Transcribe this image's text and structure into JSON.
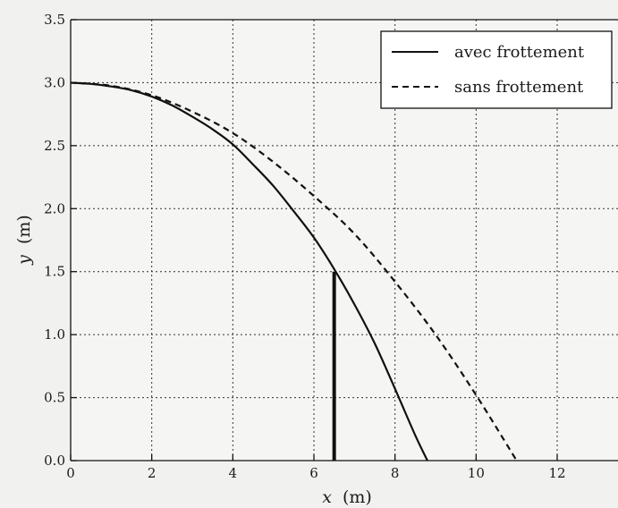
{
  "chart_data": {
    "type": "line",
    "xlabel_var": "x",
    "xlabel_unit": "(m)",
    "ylabel_var": "y",
    "ylabel_unit": "(m)",
    "xlim": [
      0,
      13.5
    ],
    "ylim": [
      0,
      3.5
    ],
    "xticks": [
      0,
      2,
      4,
      6,
      8,
      10,
      12
    ],
    "xtick_labels": [
      "0",
      "2",
      "4",
      "6",
      "8",
      "10",
      "12"
    ],
    "yticks": [
      0,
      0.5,
      1.0,
      1.5,
      2.0,
      2.5,
      3.0,
      3.5
    ],
    "ytick_labels": [
      "0.0",
      "0.5",
      "1.0",
      "1.5",
      "2.0",
      "2.5",
      "3.0",
      "3.5"
    ],
    "grid": true,
    "legend_position": "top-right",
    "series": [
      {
        "name": "avec frottement",
        "style": "solid",
        "color": "#111111",
        "x": [
          0,
          0.5,
          1,
          1.5,
          2,
          2.5,
          3,
          3.5,
          4,
          4.5,
          5,
          5.5,
          6,
          6.5,
          7,
          7.5,
          8,
          8.5,
          8.8
        ],
        "y": [
          3.0,
          2.99,
          2.97,
          2.94,
          2.89,
          2.82,
          2.73,
          2.63,
          2.51,
          2.35,
          2.18,
          1.98,
          1.77,
          1.52,
          1.24,
          0.93,
          0.57,
          0.2,
          0.0
        ]
      },
      {
        "name": "sans frottement",
        "style": "dashed",
        "color": "#111111",
        "x": [
          0,
          1,
          2,
          3,
          4,
          5,
          6,
          7,
          8,
          9,
          10,
          11
        ],
        "y": [
          3.0,
          2.975,
          2.9,
          2.77,
          2.6,
          2.37,
          2.1,
          1.8,
          1.42,
          1.0,
          0.52,
          0.0
        ]
      }
    ],
    "annotations": [
      {
        "type": "vertical-bar",
        "x": 6.5,
        "y_from": 0.0,
        "y_to": 1.5
      }
    ]
  }
}
